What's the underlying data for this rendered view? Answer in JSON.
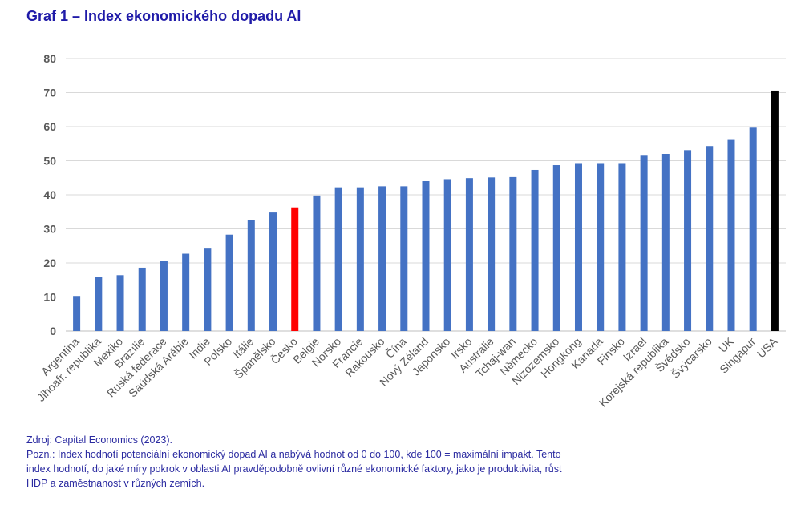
{
  "title": "Graf 1 – Index ekonomického dopadu AI",
  "source": "Zdroj: Capital Economics (2023).",
  "note": "Pozn.: Index hodnotí potenciální ekonomický dopad AI a nabývá hodnot od 0 do 100, kde 100 = maximální impakt. Tento index hodnotí, do jaké míry pokrok v oblasti AI pravděpodobně ovlivní různé ekonomické faktory, jako je produktivita, růst HDP a zaměstnanost v různých zemích.",
  "chart_data": {
    "type": "bar",
    "title": "Graf 1 – Index ekonomického dopadu AI",
    "xlabel": "",
    "ylabel": "",
    "ylim": [
      0,
      80
    ],
    "yticks": [
      0,
      10,
      20,
      30,
      40,
      50,
      60,
      70,
      80
    ],
    "grid": true,
    "legend": "none",
    "categories": [
      "Argentina",
      "Jihoafr. republika",
      "Mexiko",
      "Brazílie",
      "Ruská federace",
      "Saúdská Arábie",
      "Indie",
      "Polsko",
      "Itálie",
      "Španělsko",
      "Česko",
      "Belgie",
      "Norsko",
      "Francie",
      "Rakousko",
      "Čína",
      "Nový Zéland",
      "Japonsko",
      "Irsko",
      "Austrálie",
      "Tchaj-wan",
      "Německo",
      "Nizozemsko",
      "Hongkong",
      "Kanada",
      "Finsko",
      "Izrael",
      "Korejská republika",
      "Švédsko",
      "Švýcarsko",
      "UK",
      "Singapur",
      "USA"
    ],
    "values": [
      10.3,
      15.9,
      16.4,
      18.6,
      20.6,
      22.7,
      24.2,
      28.3,
      32.7,
      34.8,
      36.3,
      39.8,
      42.2,
      42.2,
      42.5,
      42.5,
      44.0,
      44.6,
      44.9,
      45.1,
      45.2,
      47.3,
      48.7,
      49.3,
      49.3,
      49.3,
      51.7,
      52.0,
      53.1,
      54.3,
      56.1,
      59.7,
      70.6
    ],
    "colors": {
      "default": "#4472c4",
      "highlight": "#ff0000",
      "highlight_category": "Česko",
      "emphasis": "#000000",
      "emphasis_category": "USA",
      "grid": "#d9d9d9",
      "axis": "#bfbfbf"
    }
  }
}
